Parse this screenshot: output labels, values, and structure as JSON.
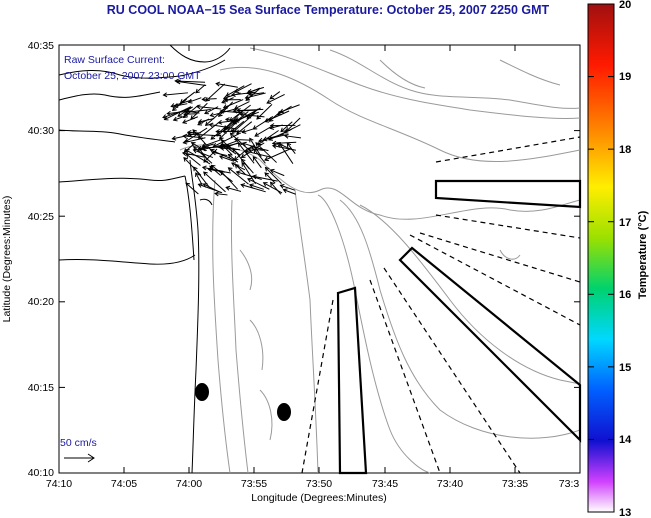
{
  "title": "RU COOL  NOAA−15  Sea Surface Temperature:  October 25, 2007 2250 GMT",
  "current_label": "Raw Surface Current:",
  "current_time": "October 25, 2007 23:00 GMT",
  "scale_label": "50 cm/s",
  "x_axis": {
    "label": "Longitude (Degrees:Minutes)",
    "ticks": [
      "74:10",
      "74:05",
      "74:00",
      "73:55",
      "73:50",
      "73:45",
      "73:40",
      "73:35",
      "73:3"
    ]
  },
  "y_axis": {
    "label": "Latitude (Degrees:Minutes)",
    "ticks": [
      "40:35",
      "40:30",
      "40:25",
      "40:20",
      "40:15",
      "40:10"
    ]
  },
  "colorbar": {
    "label": "Temperature (°C)",
    "ticks": [
      "20",
      "19",
      "18",
      "17",
      "16",
      "15",
      "14",
      "13"
    ],
    "colors": [
      "#a01010",
      "#ff1a00",
      "#ff8800",
      "#ffee00",
      "#9ce000",
      "#00d26e",
      "#00d8ff",
      "#0060ff",
      "#1010d0",
      "#d040ff",
      "#ffffff"
    ]
  },
  "map_colors": {
    "land_line": "#000000",
    "contour": "#999999",
    "vector": "#000000",
    "background": "#ffffff"
  }
}
